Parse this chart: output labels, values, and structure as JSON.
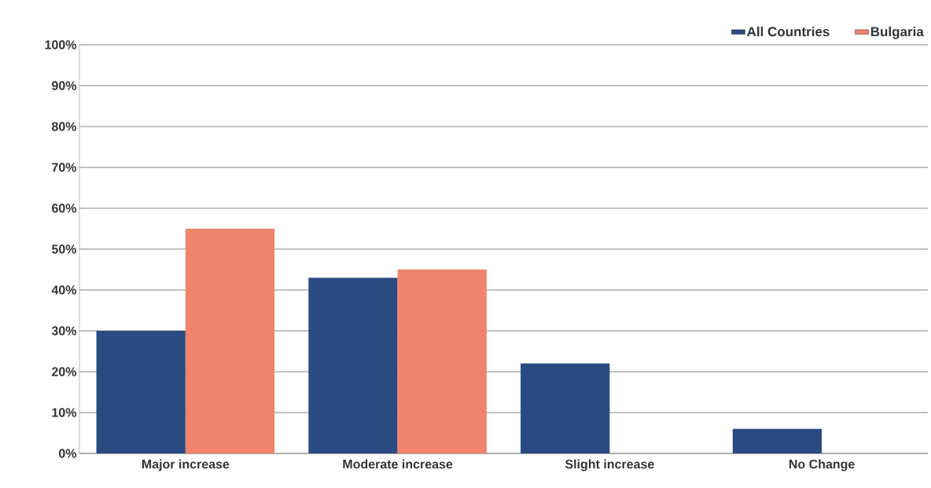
{
  "chart_data": {
    "type": "bar",
    "categories": [
      "Major increase",
      "Moderate increase",
      "Slight increase",
      "No Change"
    ],
    "series": [
      {
        "name": "All Countries",
        "color": "#2a4a82",
        "values": [
          30,
          43,
          22,
          6
        ]
      },
      {
        "name": "Bulgaria",
        "color": "#ef836b",
        "values": [
          55,
          45,
          0,
          0
        ]
      }
    ],
    "ylim": [
      0,
      100
    ],
    "yticks": [
      {
        "value": 0,
        "label": "0%"
      },
      {
        "value": 10,
        "label": "10%"
      },
      {
        "value": 20,
        "label": "20%"
      },
      {
        "value": 30,
        "label": "30%"
      },
      {
        "value": 40,
        "label": "40%"
      },
      {
        "value": 50,
        "label": "50%"
      },
      {
        "value": 60,
        "label": "60%"
      },
      {
        "value": 70,
        "label": "70%"
      },
      {
        "value": 80,
        "label": "80%"
      },
      {
        "value": 90,
        "label": "90%"
      },
      {
        "value": 100,
        "label": "100%"
      }
    ],
    "grid": "y",
    "legend": "top right"
  }
}
